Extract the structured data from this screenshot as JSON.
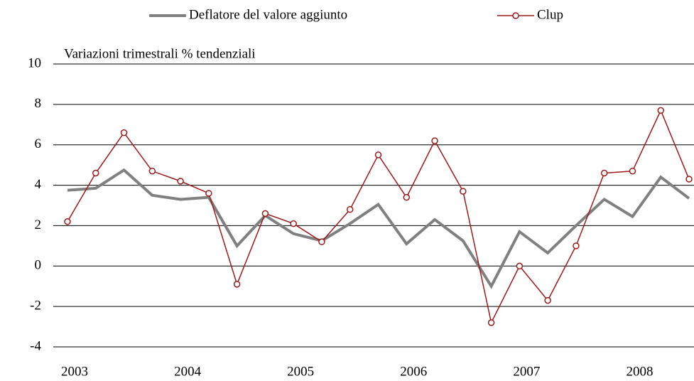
{
  "chart_data": {
    "type": "line",
    "annotation": "Variazioni trimestrali % tendenziali",
    "categories": [
      "2003",
      null,
      null,
      null,
      "2004",
      null,
      null,
      null,
      "2005",
      null,
      null,
      null,
      "2006",
      null,
      null,
      null,
      "2007",
      null,
      null,
      null,
      "2008",
      null,
      null
    ],
    "series": [
      {
        "name": "Deflatore del valore aggiunto",
        "color": "#808080",
        "marker": false,
        "values": [
          3.75,
          3.85,
          4.75,
          3.5,
          3.3,
          3.4,
          1.0,
          2.5,
          1.6,
          1.25,
          2.1,
          3.05,
          1.1,
          2.3,
          1.25,
          -1.0,
          1.7,
          0.65,
          2.0,
          3.3,
          2.45,
          4.4,
          3.35
        ]
      },
      {
        "name": "Clup",
        "color": "#9b1b1b",
        "marker": true,
        "values": [
          2.2,
          4.6,
          6.6,
          4.7,
          4.2,
          3.6,
          -0.9,
          2.6,
          2.1,
          1.2,
          2.8,
          5.5,
          3.4,
          6.2,
          3.7,
          -2.8,
          0.0,
          -1.7,
          1.0,
          4.6,
          4.7,
          7.7,
          4.3
        ]
      }
    ],
    "ylim": [
      -4,
      10
    ],
    "yticks": [
      -4,
      -2,
      0,
      2,
      4,
      6,
      8,
      10
    ],
    "grid": true,
    "legend": "top"
  }
}
